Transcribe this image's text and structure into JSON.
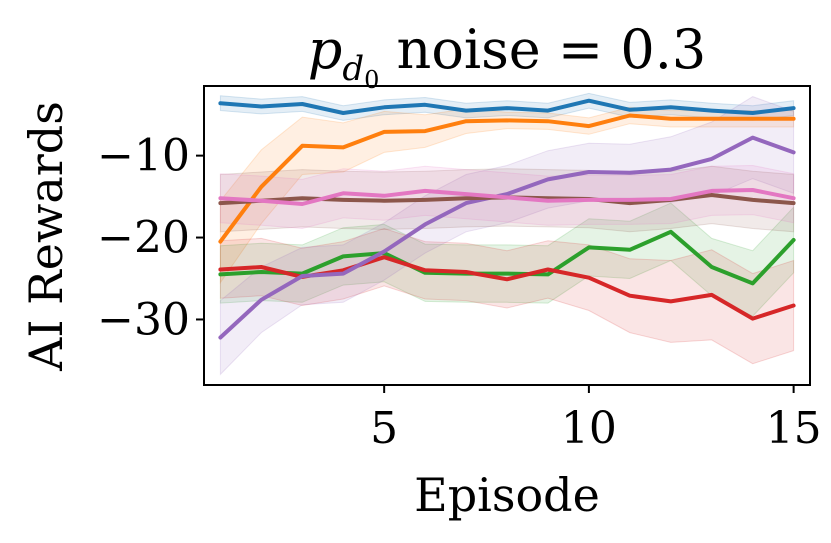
{
  "chart_data": {
    "type": "line",
    "title": "p_d0 noise = 0.3",
    "title_parts": {
      "symbol": "p",
      "subscript": "d",
      "subsubscript": "0",
      "rest": " noise = 0.3"
    },
    "xlabel": "Episode",
    "ylabel": "AI Rewards",
    "xlim": [
      0.6,
      15.4
    ],
    "ylim": [
      -38,
      -1.5
    ],
    "xticks": [
      5,
      10,
      15
    ],
    "xtick_labels": [
      "5",
      "10",
      "15"
    ],
    "yticks": [
      -10,
      -20,
      -30
    ],
    "ytick_labels": [
      "−10",
      "−20",
      "−30"
    ],
    "grid": false,
    "x": [
      1,
      2,
      3,
      4,
      5,
      6,
      7,
      8,
      9,
      10,
      11,
      12,
      13,
      14,
      15
    ],
    "series": [
      {
        "name": "blue",
        "color": "#1f77b4",
        "values": [
          -3.6,
          -4.0,
          -3.7,
          -4.8,
          -4.1,
          -3.8,
          -4.5,
          -4.2,
          -4.5,
          -3.3,
          -4.4,
          -4.1,
          -4.5,
          -4.8,
          -4.2
        ],
        "band": [
          0.9,
          0.9,
          0.9,
          0.9,
          0.9,
          0.9,
          0.9,
          0.9,
          0.9,
          0.9,
          0.9,
          0.9,
          0.9,
          0.9,
          0.9
        ]
      },
      {
        "name": "orange",
        "color": "#ff7f0e",
        "values": [
          -20.5,
          -13.8,
          -8.8,
          -9.0,
          -7.1,
          -7.0,
          -5.8,
          -5.7,
          -5.8,
          -6.4,
          -5.1,
          -5.5,
          -5.5,
          -5.5,
          -5.5
        ],
        "band": [
          5.0,
          4.5,
          3.5,
          3.0,
          2.5,
          2.0,
          1.5,
          1.0,
          1.0,
          1.0,
          1.0,
          1.0,
          1.0,
          1.0,
          1.0
        ]
      },
      {
        "name": "green",
        "color": "#2ca02c",
        "values": [
          -24.5,
          -24.2,
          -24.4,
          -22.3,
          -21.9,
          -24.3,
          -24.4,
          -24.4,
          -24.5,
          -21.2,
          -21.5,
          -19.3,
          -23.6,
          -25.6,
          -20.3
        ],
        "band": [
          3.5,
          3.5,
          3.5,
          3.5,
          3.5,
          3.5,
          3.5,
          3.5,
          3.5,
          3.5,
          3.5,
          3.5,
          3.5,
          4.0,
          4.0
        ]
      },
      {
        "name": "red",
        "color": "#d62728",
        "values": [
          -23.9,
          -23.6,
          -24.8,
          -24.0,
          -22.4,
          -24.0,
          -24.2,
          -25.1,
          -23.9,
          -24.9,
          -27.1,
          -27.8,
          -27.0,
          -29.9,
          -28.3
        ],
        "band": [
          3.5,
          3.5,
          3.5,
          3.5,
          3.5,
          3.5,
          3.5,
          3.5,
          3.5,
          4.0,
          4.5,
          5.0,
          5.5,
          5.5,
          5.5
        ]
      },
      {
        "name": "purple",
        "color": "#9467bd",
        "values": [
          -32.2,
          -27.6,
          -24.7,
          -24.4,
          -21.7,
          -18.4,
          -15.8,
          -14.7,
          -12.9,
          -12.0,
          -12.1,
          -11.7,
          -10.4,
          -7.8,
          -9.6
        ],
        "band": [
          4.5,
          4.0,
          3.5,
          3.5,
          3.5,
          3.5,
          3.5,
          3.5,
          3.5,
          3.5,
          3.5,
          4.0,
          4.5,
          5.0,
          5.0
        ]
      },
      {
        "name": "brown",
        "color": "#8c564b",
        "values": [
          -15.8,
          -15.5,
          -15.2,
          -15.4,
          -15.5,
          -15.4,
          -15.2,
          -15.1,
          -15.2,
          -15.3,
          -15.8,
          -15.4,
          -14.8,
          -15.4,
          -15.8
        ],
        "band": [
          3.5,
          3.5,
          3.5,
          3.5,
          3.5,
          3.5,
          3.5,
          3.5,
          3.5,
          3.5,
          3.5,
          3.5,
          3.5,
          3.5,
          3.5
        ]
      },
      {
        "name": "pink",
        "color": "#e377c2",
        "values": [
          -15.2,
          -15.5,
          -15.9,
          -14.6,
          -14.9,
          -14.3,
          -14.7,
          -15.1,
          -15.5,
          -15.4,
          -15.4,
          -15.3,
          -14.3,
          -14.2,
          -15.2
        ],
        "band": [
          3.0,
          3.0,
          3.0,
          3.0,
          3.0,
          3.0,
          3.0,
          3.0,
          3.0,
          3.0,
          3.0,
          3.0,
          3.0,
          3.0,
          3.0
        ]
      }
    ]
  }
}
